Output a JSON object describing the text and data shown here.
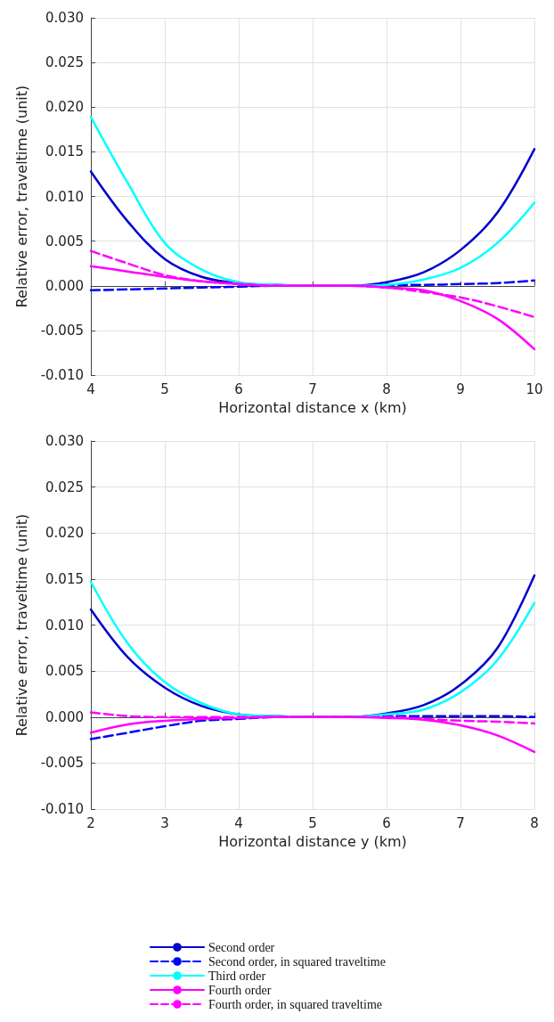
{
  "chart_data": [
    {
      "type": "line",
      "xlabel": "Horizontal distance x (km)",
      "ylabel": "Relative error, traveltime (unit)",
      "x": [
        4,
        4.5,
        5,
        5.5,
        6,
        6.5,
        7,
        7.5,
        8,
        8.5,
        9,
        9.5,
        10
      ],
      "xlim": [
        4,
        10
      ],
      "xticks": [
        4,
        5,
        6,
        7,
        8,
        9,
        10
      ],
      "ylim": [
        -0.01,
        0.03
      ],
      "yticks": [
        {
          "value": -0.01,
          "label": "-0.010"
        },
        {
          "value": -0.005,
          "label": "-0.005"
        },
        {
          "value": 0,
          "label": "0.000"
        },
        {
          "value": 0.005,
          "label": "0.005"
        },
        {
          "value": 0.01,
          "label": "0.010"
        },
        {
          "value": 0.015,
          "label": "0.015"
        },
        {
          "value": 0.02,
          "label": "0.020"
        },
        {
          "value": 0.025,
          "label": "0.025"
        },
        {
          "value": 0.03,
          "label": "0.030"
        }
      ],
      "grid": true,
      "legend": false,
      "marker": "none",
      "series": [
        {
          "color": "#0000cc",
          "line_style": "solid",
          "values": [
            0.0128,
            0.0072,
            0.003,
            0.001,
            0.0003,
            0.0001,
            0,
            0,
            0.0004,
            0.0015,
            0.004,
            0.0082,
            0.0153
          ]
        },
        {
          "color": "#0000ff",
          "line_style": "dashed",
          "values": [
            -0.0005,
            -0.0004,
            -0.0003,
            -0.0002,
            -0.0001,
            0,
            0,
            0,
            0.0001,
            0.0001,
            0.0002,
            0.0003,
            0.0006
          ]
        },
        {
          "color": "#00ffff",
          "line_style": "solid",
          "values": [
            0.0189,
            0.0115,
            0.0048,
            0.0018,
            0.0004,
            0.0001,
            0,
            0,
            0.0001,
            0.0007,
            0.002,
            0.0048,
            0.0093
          ]
        },
        {
          "color": "#ff00ff",
          "line_style": "solid",
          "values": [
            0.0022,
            0.0016,
            0.001,
            0.0005,
            0.0002,
            0,
            0,
            0,
            -0.0002,
            -0.0005,
            -0.0017,
            -0.0037,
            -0.0071
          ]
        },
        {
          "color": "#ff00ff",
          "line_style": "dashed",
          "values": [
            0.0039,
            0.0025,
            0.0012,
            0.0005,
            0.0002,
            0,
            0,
            0,
            -0.0002,
            -0.0007,
            -0.0013,
            -0.0023,
            -0.0035
          ]
        }
      ]
    },
    {
      "type": "line",
      "xlabel": "Horizontal distance y (km)",
      "ylabel": "Relative error, traveltime (unit)",
      "x": [
        2,
        2.5,
        3,
        3.5,
        4,
        4.5,
        5,
        5.5,
        6,
        6.5,
        7,
        7.5,
        8
      ],
      "xlim": [
        2,
        8
      ],
      "xticks": [
        2,
        3,
        4,
        5,
        6,
        7,
        8
      ],
      "ylim": [
        -0.01,
        0.03
      ],
      "yticks": [
        {
          "value": -0.01,
          "label": "-0.010"
        },
        {
          "value": -0.005,
          "label": "-0.005"
        },
        {
          "value": 0,
          "label": "0.000"
        },
        {
          "value": 0.005,
          "label": "0.005"
        },
        {
          "value": 0.01,
          "label": "0.010"
        },
        {
          "value": 0.015,
          "label": "0.015"
        },
        {
          "value": 0.02,
          "label": "0.020"
        },
        {
          "value": 0.025,
          "label": "0.025"
        },
        {
          "value": 0.03,
          "label": "0.030"
        }
      ],
      "grid": true,
      "legend": "bottom",
      "marker": "none",
      "series": [
        {
          "name": "Second order",
          "color": "#0000cc",
          "line_style": "solid",
          "values": [
            0.0117,
            0.0065,
            0.0032,
            0.0012,
            0.0003,
            0.0001,
            0,
            0,
            0.0004,
            0.0013,
            0.0035,
            0.0075,
            0.0154
          ]
        },
        {
          "name": "Second order, in squared traveltime",
          "color": "#0000ff",
          "line_style": "dashed",
          "values": [
            -0.0024,
            -0.0017,
            -0.001,
            -0.0004,
            -0.0002,
            0,
            0,
            0,
            0.0001,
            0.0001,
            0.0001,
            0.0001,
            0
          ]
        },
        {
          "name": "Third order",
          "color": "#00ffff",
          "line_style": "solid",
          "values": [
            0.0147,
            0.008,
            0.0038,
            0.0015,
            0.0003,
            0.0001,
            0,
            0,
            0.0003,
            0.0008,
            0.0027,
            0.0062,
            0.0124
          ]
        },
        {
          "name": "Fourth order",
          "color": "#ff00ff",
          "line_style": "solid",
          "values": [
            -0.0017,
            -0.0008,
            -0.0004,
            -0.0002,
            -0.0001,
            0,
            0,
            0,
            -0.0001,
            -0.0003,
            -0.0009,
            -0.002,
            -0.0038
          ]
        },
        {
          "name": "Fourth order, in squared traveltime",
          "color": "#ff00ff",
          "line_style": "dashed",
          "values": [
            0.0005,
            0.0001,
            0,
            0,
            0,
            0,
            0,
            0,
            0,
            -0.0002,
            -0.0004,
            -0.0005,
            -0.0007
          ]
        }
      ]
    }
  ]
}
